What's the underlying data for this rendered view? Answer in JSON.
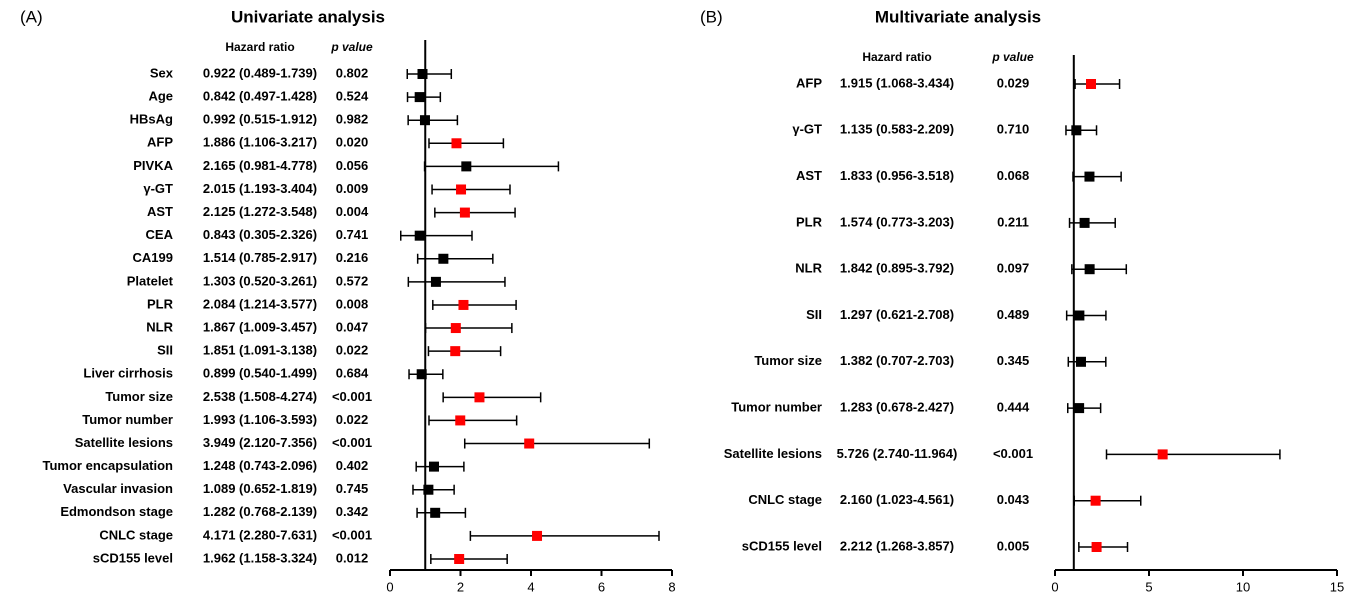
{
  "chart_data": [
    {
      "type": "forest",
      "panel_label": "(A)",
      "title": "Univariate analysis",
      "hr_header": "Hazard ratio",
      "p_header": "p value",
      "categories": [
        "Sex",
        "Age",
        "HBsAg",
        "AFP",
        "PIVKA",
        "γ-GT",
        "AST",
        "CEA",
        "CA199",
        "Platelet",
        "PLR",
        "NLR",
        "SII",
        "Liver cirrhosis",
        "Tumor size",
        "Tumor number",
        "Satellite lesions",
        "Tumor encapsulation",
        "Vascular invasion",
        "Edmondson stage",
        "CNLC stage",
        "sCD155 level"
      ],
      "values": [
        0.922,
        0.842,
        0.992,
        1.886,
        2.165,
        2.015,
        2.125,
        0.843,
        1.514,
        1.303,
        2.084,
        1.867,
        1.851,
        0.899,
        2.538,
        1.993,
        3.949,
        1.248,
        1.089,
        1.282,
        4.171,
        1.962
      ],
      "lower": [
        0.489,
        0.497,
        0.515,
        1.106,
        0.981,
        1.193,
        1.272,
        0.305,
        0.785,
        0.52,
        1.214,
        1.009,
        1.091,
        0.54,
        1.508,
        1.106,
        2.12,
        0.743,
        0.652,
        0.768,
        2.28,
        1.158
      ],
      "upper": [
        1.739,
        1.428,
        1.912,
        3.217,
        4.778,
        3.404,
        3.548,
        2.326,
        2.917,
        3.261,
        3.577,
        3.457,
        3.138,
        1.499,
        4.274,
        3.593,
        7.356,
        2.096,
        1.819,
        2.139,
        7.631,
        3.324
      ],
      "value_labels": [
        "0.922 (0.489-1.739)",
        "0.842 (0.497-1.428)",
        "0.992 (0.515-1.912)",
        "1.886 (1.106-3.217)",
        "2.165 (0.981-4.778)",
        "2.015 (1.193-3.404)",
        "2.125 (1.272-3.548)",
        "0.843 (0.305-2.326)",
        "1.514 (0.785-2.917)",
        "1.303 (0.520-3.261)",
        "2.084 (1.214-3.577)",
        "1.867 (1.009-3.457)",
        "1.851 (1.091-3.138)",
        "0.899 (0.540-1.499)",
        "2.538 (1.508-4.274)",
        "1.993 (1.106-3.593)",
        "3.949 (2.120-7.356)",
        "1.248 (0.743-2.096)",
        "1.089 (0.652-1.819)",
        "1.282 (0.768-2.139)",
        "4.171 (2.280-7.631)",
        "1.962 (1.158-3.324)"
      ],
      "p_values": [
        "0.802",
        "0.524",
        "0.982",
        "0.020",
        "0.056",
        "0.009",
        "0.004",
        "0.741",
        "0.216",
        "0.572",
        "0.008",
        "0.047",
        "0.022",
        "0.684",
        "<0.001",
        "0.022",
        "<0.001",
        "0.402",
        "0.745",
        "0.342",
        "<0.001",
        "0.012"
      ],
      "marker_colors": [
        "#000000",
        "#000000",
        "#000000",
        "#ff0000",
        "#000000",
        "#ff0000",
        "#ff0000",
        "#000000",
        "#000000",
        "#000000",
        "#ff0000",
        "#ff0000",
        "#ff0000",
        "#000000",
        "#ff0000",
        "#ff0000",
        "#ff0000",
        "#000000",
        "#000000",
        "#000000",
        "#ff0000",
        "#ff0000"
      ],
      "reference_line": 1,
      "xlim": [
        0,
        8
      ],
      "xticks": [
        0,
        2,
        4,
        6,
        8
      ]
    },
    {
      "type": "forest",
      "panel_label": "(B)",
      "title": "Multivariate analysis",
      "hr_header": "Hazard ratio",
      "p_header": "p value",
      "categories": [
        "AFP",
        "γ-GT",
        "AST",
        "PLR",
        "NLR",
        "SII",
        "Tumor size",
        "Tumor number",
        "Satellite lesions",
        "CNLC stage",
        "sCD155 level"
      ],
      "values": [
        1.915,
        1.135,
        1.833,
        1.574,
        1.842,
        1.297,
        1.382,
        1.283,
        5.726,
        2.16,
        2.212
      ],
      "lower": [
        1.068,
        0.583,
        0.956,
        0.773,
        0.895,
        0.621,
        0.707,
        0.678,
        2.74,
        1.023,
        1.268
      ],
      "upper": [
        3.434,
        2.209,
        3.518,
        3.203,
        3.792,
        2.708,
        2.703,
        2.427,
        11.964,
        4.561,
        3.857
      ],
      "value_labels": [
        "1.915 (1.068-3.434)",
        "1.135 (0.583-2.209)",
        "1.833 (0.956-3.518)",
        "1.574 (0.773-3.203)",
        "1.842 (0.895-3.792)",
        "1.297 (0.621-2.708)",
        "1.382 (0.707-2.703)",
        "1.283 (0.678-2.427)",
        "5.726 (2.740-11.964)",
        "2.160 (1.023-4.561)",
        "2.212 (1.268-3.857)"
      ],
      "p_values": [
        "0.029",
        "0.710",
        "0.068",
        "0.211",
        "0.097",
        "0.489",
        "0.345",
        "0.444",
        "<0.001",
        "0.043",
        "0.005"
      ],
      "marker_colors": [
        "#ff0000",
        "#000000",
        "#000000",
        "#000000",
        "#000000",
        "#000000",
        "#000000",
        "#000000",
        "#ff0000",
        "#ff0000",
        "#ff0000"
      ],
      "reference_line": 1,
      "xlim": [
        0,
        15
      ],
      "xticks": [
        0,
        5,
        10,
        15
      ]
    }
  ]
}
